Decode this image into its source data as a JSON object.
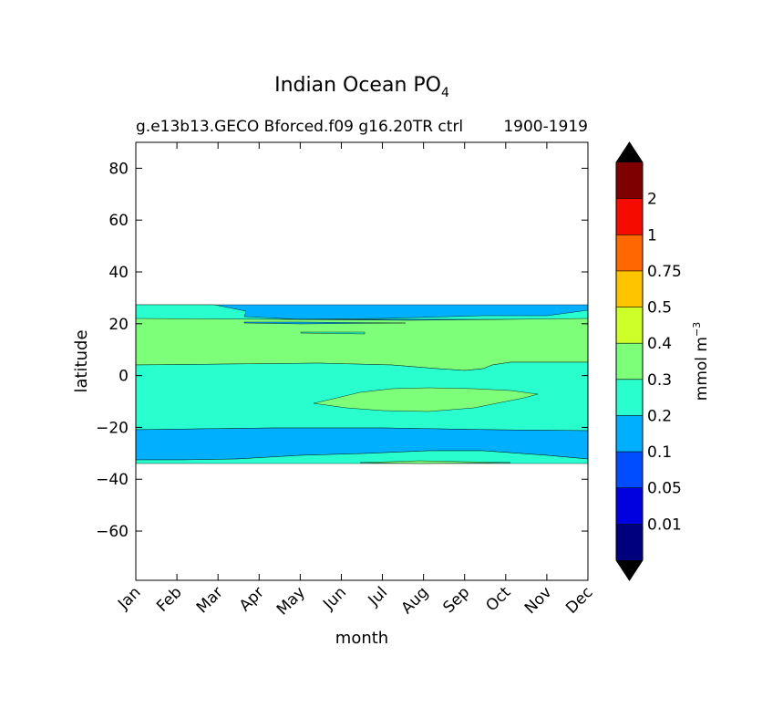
{
  "chart_data": {
    "type": "heatmap",
    "title": "Indian Ocean PO",
    "title_subscript": "4",
    "subtitle_left": "g.e13b13.GECO Bforced.f09 g16.20TR ctrl",
    "subtitle_right": "1900-1919",
    "xlabel": "month",
    "ylabel": "latitude",
    "x_categories": [
      "Jan",
      "Feb",
      "Mar",
      "Apr",
      "May",
      "Jun",
      "Jul",
      "Aug",
      "Sep",
      "Oct",
      "Nov",
      "Dec"
    ],
    "y_ticks": [
      80,
      60,
      40,
      20,
      0,
      -20,
      -40,
      -60
    ],
    "y_tick_labels": [
      "80",
      "60",
      "40",
      "20",
      "0",
      "−20",
      "−40",
      "−60"
    ],
    "ylim": [
      -79,
      90
    ],
    "colorbar": {
      "label": "mmol m",
      "label_superscript": "−3",
      "levels": [
        0.01,
        0.05,
        0.1,
        0.2,
        0.3,
        0.4,
        0.5,
        0.75,
        1,
        2
      ],
      "tick_labels": [
        "0.01",
        "0.05",
        "0.1",
        "0.2",
        "0.3",
        "0.4",
        "0.5",
        "0.75",
        "1",
        "2"
      ],
      "colors": [
        "#00007f",
        "#0000e1",
        "#004dff",
        "#00b0ff",
        "#29ffce",
        "#7dff7a",
        "#ceff29",
        "#ffc400",
        "#ff6800",
        "#f50b00",
        "#7f0000"
      ],
      "extend": "both",
      "extend_colors": [
        "#000000",
        "#000000"
      ]
    },
    "data_extent_lat": [
      -34,
      27
    ],
    "bands": [
      {
        "range": "0.1-0.2",
        "from_lat": 22,
        "to_lat": 27
      },
      {
        "range": "0.3-0.4",
        "from_lat": 4,
        "to_lat": 22
      },
      {
        "range": "0.2-0.3",
        "from_lat": -21,
        "to_lat": 4
      },
      {
        "range": "0.3-0.4",
        "from_lat": -15,
        "to_lat": -5,
        "months": [
          "Jun",
          "Oct"
        ]
      },
      {
        "range": "0.1-0.2",
        "from_lat": -33,
        "to_lat": -21
      },
      {
        "range": "0.2-0.3",
        "from_lat": -34,
        "to_lat": -30
      }
    ]
  }
}
